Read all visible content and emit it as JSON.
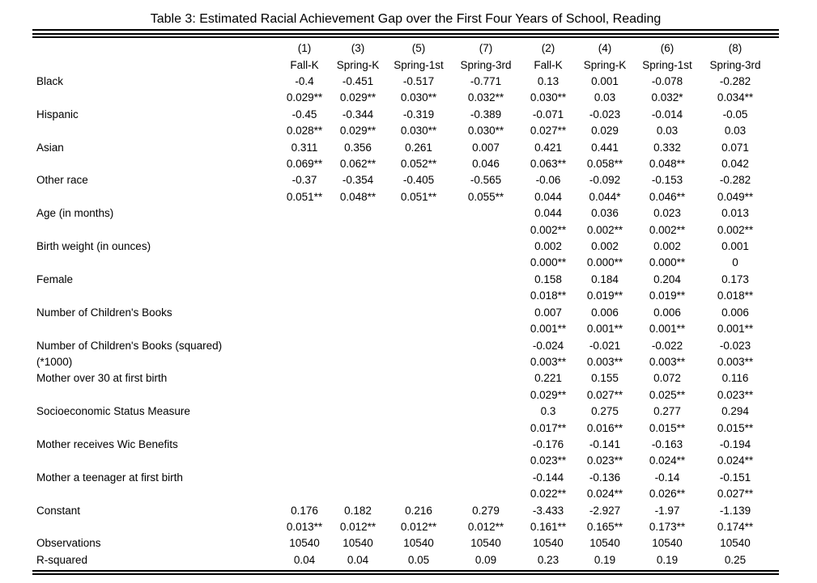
{
  "title": "Table 3: Estimated Racial Achievement Gap over the First Four Years of School, Reading",
  "text_color": "#000000",
  "table": {
    "column_numbers": [
      "(1)",
      "(3)",
      "(5)",
      "(7)",
      "(2)",
      "(4)",
      "(6)",
      "(8)"
    ],
    "column_labels": [
      "Fall-K",
      "Spring-K",
      "Spring-1st",
      "Spring-3rd",
      "Fall-K",
      "Spring-K",
      "Spring-1st",
      "Spring-3rd"
    ],
    "rows": [
      {
        "label": "Black",
        "label2": "",
        "coef": [
          "-0.4",
          "-0.451",
          "-0.517",
          "-0.771",
          "0.13",
          "0.001",
          "-0.078",
          "-0.282"
        ],
        "se": [
          "0.029**",
          "0.029**",
          "0.030**",
          "0.032**",
          "0.030**",
          "0.03",
          "0.032*",
          "0.034**"
        ]
      },
      {
        "label": "Hispanic",
        "label2": "",
        "coef": [
          "-0.45",
          "-0.344",
          "-0.319",
          "-0.389",
          "-0.071",
          "-0.023",
          "-0.014",
          "-0.05"
        ],
        "se": [
          "0.028**",
          "0.029**",
          "0.030**",
          "0.030**",
          "0.027**",
          "0.029",
          "0.03",
          "0.03"
        ]
      },
      {
        "label": "Asian",
        "label2": "",
        "coef": [
          "0.311",
          "0.356",
          "0.261",
          "0.007",
          "0.421",
          "0.441",
          "0.332",
          "0.071"
        ],
        "se": [
          "0.069**",
          "0.062**",
          "0.052**",
          "0.046",
          "0.063**",
          "0.058**",
          "0.048**",
          "0.042"
        ]
      },
      {
        "label": "Other race",
        "label2": "",
        "coef": [
          "-0.37",
          "-0.354",
          "-0.405",
          "-0.565",
          "-0.06",
          "-0.092",
          "-0.153",
          "-0.282"
        ],
        "se": [
          "0.051**",
          "0.048**",
          "0.051**",
          "0.055**",
          "0.044",
          "0.044*",
          "0.046**",
          "0.049**"
        ]
      },
      {
        "label": "Age (in months)",
        "label2": "",
        "coef": [
          "",
          "",
          "",
          "",
          "0.044",
          "0.036",
          "0.023",
          "0.013"
        ],
        "se": [
          "",
          "",
          "",
          "",
          "0.002**",
          "0.002**",
          "0.002**",
          "0.002**"
        ]
      },
      {
        "label": "Birth weight (in ounces)",
        "label2": "",
        "coef": [
          "",
          "",
          "",
          "",
          "0.002",
          "0.002",
          "0.002",
          "0.001"
        ],
        "se": [
          "",
          "",
          "",
          "",
          "0.000**",
          "0.000**",
          "0.000**",
          "0"
        ]
      },
      {
        "label": "Female",
        "label2": "",
        "coef": [
          "",
          "",
          "",
          "",
          "0.158",
          "0.184",
          "0.204",
          "0.173"
        ],
        "se": [
          "",
          "",
          "",
          "",
          "0.018**",
          "0.019**",
          "0.019**",
          "0.018**"
        ]
      },
      {
        "label": "Number of Children's Books",
        "label2": "",
        "coef": [
          "",
          "",
          "",
          "",
          "0.007",
          "0.006",
          "0.006",
          "0.006"
        ],
        "se": [
          "",
          "",
          "",
          "",
          "0.001**",
          "0.001**",
          "0.001**",
          "0.001**"
        ]
      },
      {
        "label": "Number of Children's Books (squared)",
        "label2": "(*1000)",
        "coef": [
          "",
          "",
          "",
          "",
          "-0.024",
          "-0.021",
          "-0.022",
          "-0.023"
        ],
        "se": [
          "",
          "",
          "",
          "",
          "0.003**",
          "0.003**",
          "0.003**",
          "0.003**"
        ]
      },
      {
        "label": "Mother over 30 at first birth",
        "label2": "",
        "coef": [
          "",
          "",
          "",
          "",
          "0.221",
          "0.155",
          "0.072",
          "0.116"
        ],
        "se": [
          "",
          "",
          "",
          "",
          "0.029**",
          "0.027**",
          "0.025**",
          "0.023**"
        ]
      },
      {
        "label": "Socioeconomic Status Measure",
        "label2": "",
        "coef": [
          "",
          "",
          "",
          "",
          "0.3",
          "0.275",
          "0.277",
          "0.294"
        ],
        "se": [
          "",
          "",
          "",
          "",
          "0.017**",
          "0.016**",
          "0.015**",
          "0.015**"
        ]
      },
      {
        "label": "Mother receives Wic Benefits",
        "label2": "",
        "coef": [
          "",
          "",
          "",
          "",
          "-0.176",
          "-0.141",
          "-0.163",
          "-0.194"
        ],
        "se": [
          "",
          "",
          "",
          "",
          "0.023**",
          "0.023**",
          "0.024**",
          "0.024**"
        ]
      },
      {
        "label": "Mother a teenager at first birth",
        "label2": "",
        "coef": [
          "",
          "",
          "",
          "",
          "-0.144",
          "-0.136",
          "-0.14",
          "-0.151"
        ],
        "se": [
          "",
          "",
          "",
          "",
          "0.022**",
          "0.024**",
          "0.026**",
          "0.027**"
        ]
      },
      {
        "label": "Constant",
        "label2": "",
        "coef": [
          "0.176",
          "0.182",
          "0.216",
          "0.279",
          "-3.433",
          "-2.927",
          "-1.97",
          "-1.139"
        ],
        "se": [
          "0.013**",
          "0.012**",
          "0.012**",
          "0.012**",
          "0.161**",
          "0.165**",
          "0.173**",
          "0.174**"
        ]
      }
    ],
    "footer_rows": [
      {
        "label": "Observations",
        "values": [
          "10540",
          "10540",
          "10540",
          "10540",
          "10540",
          "10540",
          "10540",
          "10540"
        ]
      },
      {
        "label": "R-squared",
        "values": [
          "0.04",
          "0.04",
          "0.05",
          "0.09",
          "0.23",
          "0.19",
          "0.19",
          "0.25"
        ]
      }
    ]
  }
}
